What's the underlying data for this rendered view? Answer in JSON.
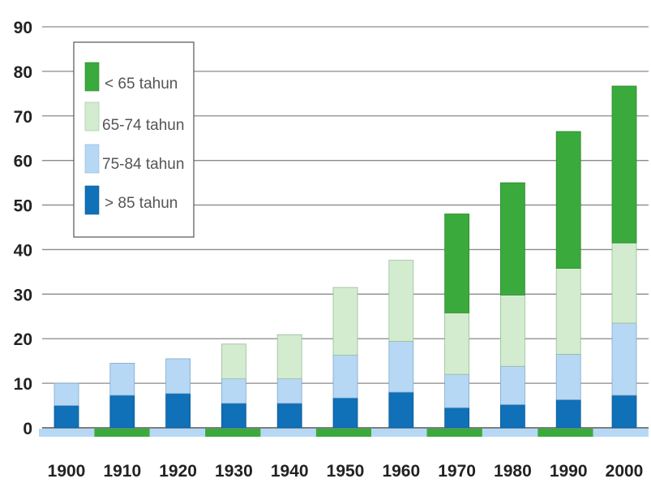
{
  "chart_data": {
    "type": "bar",
    "stacked": true,
    "title": "",
    "xlabel": "",
    "ylabel": "",
    "ylim": [
      0,
      90
    ],
    "yticks": [
      0,
      10,
      20,
      30,
      40,
      50,
      60,
      70,
      80,
      90
    ],
    "grid": true,
    "legend_position": "top-left",
    "categories": [
      "1900",
      "1910",
      "1920",
      "1930",
      "1940",
      "1950",
      "1960",
      "1970",
      "1980",
      "1990",
      "2000"
    ],
    "series": [
      {
        "name": "> 85 tahun",
        "color": "#1070b8",
        "values": [
          5,
          7.3,
          7.7,
          5.5,
          5.5,
          6.7,
          8,
          4.5,
          5.2,
          6.3,
          7.3
        ]
      },
      {
        "name": "75-84 tahun",
        "color": "#b6d8f5",
        "values": [
          5,
          7.2,
          7.8,
          5.5,
          5.5,
          9.6,
          11.4,
          7.5,
          8.6,
          10.2,
          16.2
        ]
      },
      {
        "name": "65-74 tahun",
        "color": "#d3ecd0",
        "values": [
          0,
          0,
          0,
          7.8,
          9.9,
          15.2,
          18.2,
          13.8,
          16,
          19.3,
          18
        ]
      },
      {
        "name": "< 65 tahun",
        "color": "#3aaa3c",
        "values": [
          0,
          0,
          0,
          0,
          0,
          0,
          0,
          22.2,
          25.2,
          30.7,
          35.2
        ]
      }
    ],
    "legend_order": [
      "< 65 tahun",
      "65-74 tahun",
      "75-84 tahun",
      "> 85 tahun"
    ]
  }
}
